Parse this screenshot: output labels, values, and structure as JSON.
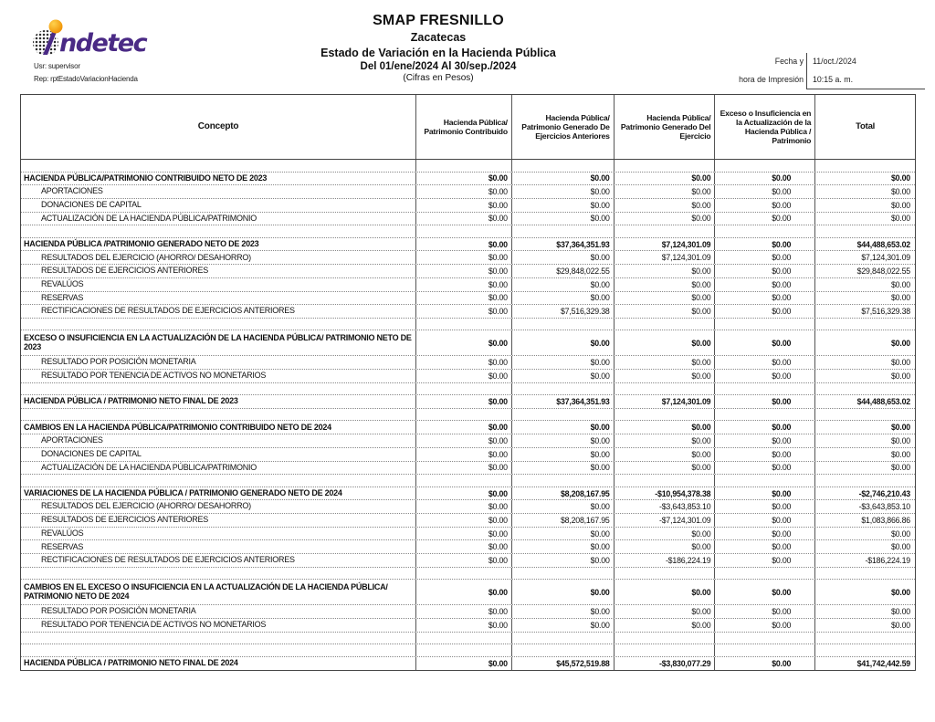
{
  "logo": {
    "brand_rest": "ndetec",
    "brand_color": "#4a2a85",
    "dot_color_outer": "#ef8f00",
    "dot_color_inner": "#ffd24d",
    "halftone_color": "#2e2e2e"
  },
  "meta": {
    "usr": "Usr: supervisor",
    "rep": "Rep: rptEstadoVariacionHacienda"
  },
  "header": {
    "title": "SMAP FRESNILLO",
    "subtitle": "Zacatecas",
    "report_name": "Estado de Variación en la Hacienda Pública",
    "period": "Del 01/ene/2024 Al 30/sep./2024",
    "units": "(Cifras en Pesos)",
    "print_label_line1": "Fecha y",
    "print_label_line2": "hora de Impresión",
    "print_date": "11/oct./2024",
    "print_time": "10:15 a. m."
  },
  "table": {
    "columns": [
      "Concepto",
      "Hacienda Pública/ Patrimonio Contribuido",
      "Hacienda Pública/ Patrimonio Generado De Ejercicios Anteriores",
      "Hacienda Pública/ Patrimonio Generado Del Ejercicio",
      "Exceso o Insuficiencia en la Actualización de la Hacienda Pública / Patrimonio",
      "Total"
    ],
    "rows": [
      {
        "type": "blank"
      },
      {
        "type": "section",
        "concepto": "HACIENDA PÚBLICA/PATRIMONIO CONTRIBUIDO NETO DE 2023",
        "values": [
          "$0.00",
          "$0.00",
          "$0.00",
          "$0.00",
          "$0.00"
        ]
      },
      {
        "type": "detail",
        "concepto": "APORTACIONES",
        "values": [
          "$0.00",
          "$0.00",
          "$0.00",
          "$0.00",
          "$0.00"
        ]
      },
      {
        "type": "detail",
        "concepto": "DONACIONES DE CAPITAL",
        "values": [
          "$0.00",
          "$0.00",
          "$0.00",
          "$0.00",
          "$0.00"
        ]
      },
      {
        "type": "detail",
        "concepto": "ACTUALIZACIÓN DE LA HACIENDA PÚBLICA/PATRIMONIO",
        "values": [
          "$0.00",
          "$0.00",
          "$0.00",
          "$0.00",
          "$0.00"
        ]
      },
      {
        "type": "blank"
      },
      {
        "type": "section",
        "concepto": "HACIENDA PÚBLICA /PATRIMONIO GENERADO NETO DE 2023",
        "values": [
          "$0.00",
          "$37,364,351.93",
          "$7,124,301.09",
          "$0.00",
          "$44,488,653.02"
        ]
      },
      {
        "type": "detail",
        "concepto": "RESULTADOS DEL EJERCICIO (AHORRO/ DESAHORRO)",
        "values": [
          "$0.00",
          "$0.00",
          "$7,124,301.09",
          "$0.00",
          "$7,124,301.09"
        ]
      },
      {
        "type": "detail",
        "concepto": "RESULTADOS DE EJERCICIOS ANTERIORES",
        "values": [
          "$0.00",
          "$29,848,022.55",
          "$0.00",
          "$0.00",
          "$29,848,022.55"
        ]
      },
      {
        "type": "detail",
        "concepto": "REVALÚOS",
        "values": [
          "$0.00",
          "$0.00",
          "$0.00",
          "$0.00",
          "$0.00"
        ]
      },
      {
        "type": "detail",
        "concepto": "RESERVAS",
        "values": [
          "$0.00",
          "$0.00",
          "$0.00",
          "$0.00",
          "$0.00"
        ]
      },
      {
        "type": "detail",
        "concepto": "RECTIFICACIONES DE RESULTADOS DE EJERCICIOS ANTERIORES",
        "values": [
          "$0.00",
          "$7,516,329.38",
          "$0.00",
          "$0.00",
          "$7,516,329.38"
        ]
      },
      {
        "type": "blank"
      },
      {
        "type": "section2",
        "concepto": "EXCESO O INSUFICIENCIA EN LA ACTUALIZACIÓN DE LA HACIENDA PÚBLICA/ PATRIMONIO NETO DE 2023",
        "values": [
          "$0.00",
          "$0.00",
          "$0.00",
          "$0.00",
          "$0.00"
        ]
      },
      {
        "type": "detail",
        "concepto": "RESULTADO POR POSICIÓN MONETARIA",
        "values": [
          "$0.00",
          "$0.00",
          "$0.00",
          "$0.00",
          "$0.00"
        ]
      },
      {
        "type": "detail",
        "concepto": "RESULTADO POR TENENCIA DE ACTIVOS NO MONETARIOS",
        "values": [
          "$0.00",
          "$0.00",
          "$0.00",
          "$0.00",
          "$0.00"
        ]
      },
      {
        "type": "blank"
      },
      {
        "type": "total",
        "concepto": "HACIENDA PÚBLICA / PATRIMONIO NETO  FINAL DE 2023",
        "values": [
          "$0.00",
          "$37,364,351.93",
          "$7,124,301.09",
          "$0.00",
          "$44,488,653.02"
        ]
      },
      {
        "type": "blank"
      },
      {
        "type": "section",
        "concepto": "CAMBIOS EN LA HACIENDA PÚBLICA/PATRIMONIO CONTRIBUIDO NETO DE 2024",
        "values": [
          "$0.00",
          "$0.00",
          "$0.00",
          "$0.00",
          "$0.00"
        ]
      },
      {
        "type": "detail",
        "concepto": "APORTACIONES",
        "values": [
          "$0.00",
          "$0.00",
          "$0.00",
          "$0.00",
          "$0.00"
        ]
      },
      {
        "type": "detail",
        "concepto": "DONACIONES DE CAPITAL",
        "values": [
          "$0.00",
          "$0.00",
          "$0.00",
          "$0.00",
          "$0.00"
        ]
      },
      {
        "type": "detail",
        "concepto": "ACTUALIZACIÓN DE LA HACIENDA PÚBLICA/PATRIMONIO",
        "values": [
          "$0.00",
          "$0.00",
          "$0.00",
          "$0.00",
          "$0.00"
        ]
      },
      {
        "type": "blank"
      },
      {
        "type": "section",
        "concepto": "VARIACIONES DE LA HACIENDA PÚBLICA / PATRIMONIO GENERADO NETO DE 2024",
        "values": [
          "$0.00",
          "$8,208,167.95",
          "-$10,954,378.38",
          "$0.00",
          "-$2,746,210.43"
        ]
      },
      {
        "type": "detail",
        "concepto": "RESULTADOS DEL EJERCICIO (AHORRO/ DESAHORRO)",
        "values": [
          "$0.00",
          "$0.00",
          "-$3,643,853.10",
          "$0.00",
          "-$3,643,853.10"
        ]
      },
      {
        "type": "detail",
        "concepto": "RESULTADOS DE EJERCICIOS ANTERIORES",
        "values": [
          "$0.00",
          "$8,208,167.95",
          "-$7,124,301.09",
          "$0.00",
          "$1,083,866.86"
        ]
      },
      {
        "type": "detail",
        "concepto": "REVALÚOS",
        "values": [
          "$0.00",
          "$0.00",
          "$0.00",
          "$0.00",
          "$0.00"
        ]
      },
      {
        "type": "detail",
        "concepto": "RESERVAS",
        "values": [
          "$0.00",
          "$0.00",
          "$0.00",
          "$0.00",
          "$0.00"
        ]
      },
      {
        "type": "detail",
        "concepto": "RECTIFICACIONES DE RESULTADOS DE EJERCICIOS ANTERIORES",
        "values": [
          "$0.00",
          "$0.00",
          "-$186,224.19",
          "$0.00",
          "-$186,224.19"
        ]
      },
      {
        "type": "blank"
      },
      {
        "type": "section2",
        "concepto": "CAMBIOS EN EL EXCESO O INSUFICIENCIA EN LA ACTUALIZACIÓN DE LA HACIENDA PÚBLICA/ PATRIMONIO NETO DE 2024",
        "values": [
          "$0.00",
          "$0.00",
          "$0.00",
          "$0.00",
          "$0.00"
        ]
      },
      {
        "type": "detail",
        "concepto": "RESULTADO POR POSICIÓN MONETARIA",
        "values": [
          "$0.00",
          "$0.00",
          "$0.00",
          "$0.00",
          "$0.00"
        ]
      },
      {
        "type": "detail",
        "concepto": "RESULTADO POR TENENCIA DE ACTIVOS NO MONETARIOS",
        "values": [
          "$0.00",
          "$0.00",
          "$0.00",
          "$0.00",
          "$0.00"
        ]
      },
      {
        "type": "blank"
      },
      {
        "type": "blank"
      },
      {
        "type": "total",
        "concepto": "HACIENDA PÚBLICA / PATRIMONIO NETO FINAL DE 2024",
        "values": [
          "$0.00",
          "$45,572,519.88",
          "-$3,830,077.29",
          "$0.00",
          "$41,742,442.59"
        ]
      }
    ]
  }
}
